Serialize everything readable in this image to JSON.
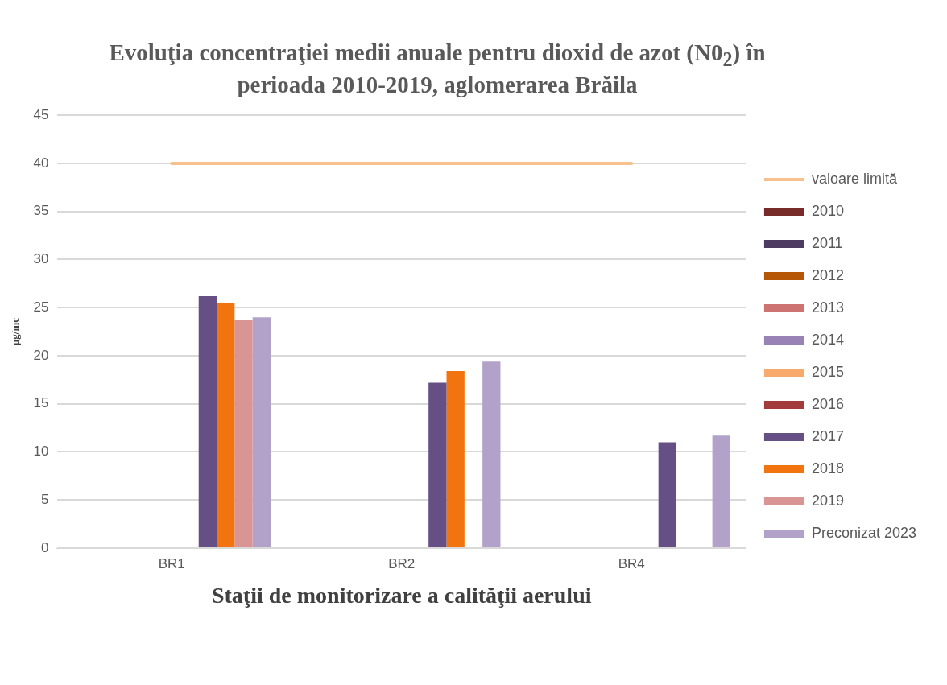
{
  "chart_data": {
    "type": "bar",
    "title": "Evoluţia concentraţiei medii anuale pentru dioxid de azot (N0$_{2}$) în perioada 2010-2019, aglomerarea Brăila",
    "xlabel": "Staţii de monitorizare a calităţii aerului",
    "ylabel": "µg/mc",
    "categories": [
      "BR1",
      "BR2",
      "BR4"
    ],
    "ylim": [
      0,
      45
    ],
    "yticks": [
      0,
      5,
      10,
      15,
      20,
      25,
      30,
      35,
      40,
      45
    ],
    "grid": "y",
    "legend": "right",
    "series": [
      {
        "name": "2010",
        "color": "#772c2a",
        "values": [
          null,
          null,
          null
        ]
      },
      {
        "name": "2011",
        "color": "#4d3b62",
        "values": [
          null,
          null,
          null
        ]
      },
      {
        "name": "2012",
        "color": "#b65708",
        "values": [
          null,
          null,
          null
        ]
      },
      {
        "name": "2013",
        "color": "#cd7371",
        "values": [
          null,
          null,
          null
        ]
      },
      {
        "name": "2014",
        "color": "#9983b6",
        "values": [
          null,
          null,
          null
        ]
      },
      {
        "name": "2015",
        "color": "#f7aa6b",
        "values": [
          null,
          null,
          null
        ]
      },
      {
        "name": "2016",
        "color": "#a23b3b",
        "values": [
          null,
          null,
          null
        ]
      },
      {
        "name": "2017",
        "color": "#664f85",
        "values": [
          26.2,
          17.2,
          11.0
        ]
      },
      {
        "name": "2018",
        "color": "#f2740e",
        "values": [
          25.5,
          18.4,
          null
        ]
      },
      {
        "name": "2019",
        "color": "#d99594",
        "values": [
          23.7,
          null,
          null
        ]
      },
      {
        "name": "Preconizat 2023",
        "color": "#b2a2c9",
        "values": [
          24.0,
          19.4,
          11.7
        ]
      },
      {
        "name": "valoare limită",
        "type": "line",
        "color": "#f9c08f",
        "values": [
          40,
          40,
          40
        ]
      }
    ]
  }
}
